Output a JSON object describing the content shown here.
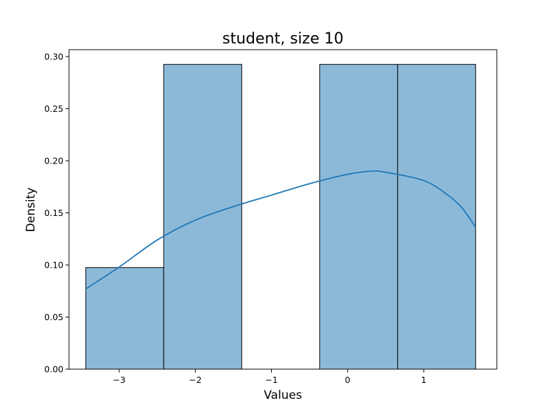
{
  "chart_data": {
    "type": "bar",
    "title": "student, size 10",
    "xlabel": "Values",
    "ylabel": "Density",
    "xlim": [
      -3.66,
      1.96
    ],
    "ylim": [
      0.0,
      0.3066
    ],
    "grid": false,
    "x_ticks": [
      {
        "value": -3,
        "label": "−3"
      },
      {
        "value": -2,
        "label": "−2"
      },
      {
        "value": -1,
        "label": "−1"
      },
      {
        "value": 0,
        "label": "0"
      },
      {
        "value": 1,
        "label": "1"
      }
    ],
    "y_ticks": [
      {
        "value": 0.0,
        "label": "0.00"
      },
      {
        "value": 0.05,
        "label": "0.05"
      },
      {
        "value": 0.1,
        "label": "0.10"
      },
      {
        "value": 0.15,
        "label": "0.15"
      },
      {
        "value": 0.2,
        "label": "0.20"
      },
      {
        "value": 0.25,
        "label": "0.25"
      },
      {
        "value": 0.3,
        "label": "0.30"
      }
    ],
    "bins": [
      {
        "x0": -3.44,
        "x1": -2.416,
        "density": 0.0975
      },
      {
        "x0": -2.416,
        "x1": -1.391,
        "density": 0.2925
      },
      {
        "x0": -1.391,
        "x1": -0.367,
        "density": 0.0
      },
      {
        "x0": -0.367,
        "x1": 0.658,
        "density": 0.2925
      },
      {
        "x0": 0.658,
        "x1": 1.682,
        "density": 0.2925
      }
    ],
    "kde": {
      "x": [
        -3.44,
        -3.0,
        -2.5,
        -2.0,
        -1.5,
        -1.0,
        -0.5,
        0.0,
        0.3,
        0.5,
        1.0,
        1.3,
        1.5,
        1.682
      ],
      "y": [
        0.077,
        0.098,
        0.124,
        0.143,
        0.156,
        0.167,
        0.178,
        0.187,
        0.19,
        0.189,
        0.181,
        0.168,
        0.155,
        0.136
      ]
    },
    "colors": {
      "bar_fill": "#8db9d9",
      "bar_edge": "#000000",
      "kde_line": "#1f77b4"
    }
  }
}
